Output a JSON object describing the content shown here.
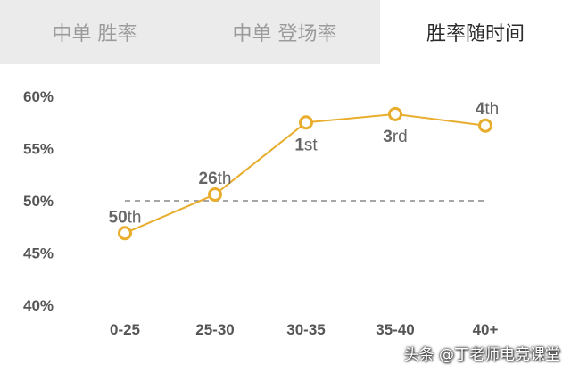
{
  "tabs": [
    {
      "label": "中单 胜率",
      "active": false
    },
    {
      "label": "中单 登场率",
      "active": false
    },
    {
      "label": "胜率随时间",
      "active": true
    }
  ],
  "chart_data": {
    "type": "line",
    "categories": [
      "0-25",
      "25-30",
      "30-35",
      "35-40",
      "40+"
    ],
    "values": [
      46.9,
      50.6,
      57.5,
      58.3,
      57.2
    ],
    "rank_labels": [
      {
        "num": "50",
        "suffix": "th"
      },
      {
        "num": "26",
        "suffix": "th"
      },
      {
        "num": "1",
        "suffix": "st"
      },
      {
        "num": "3",
        "suffix": "rd"
      },
      {
        "num": "4",
        "suffix": "th"
      }
    ],
    "yticks": [
      "40%",
      "45%",
      "50%",
      "55%",
      "60%"
    ],
    "ytick_values": [
      40,
      45,
      50,
      55,
      60
    ],
    "ylim": [
      40,
      60
    ],
    "reference_line": 50,
    "line_color": "#e8ad2d",
    "reference_line_color": "#888888"
  },
  "watermark": "头条 @丁老师电竞课堂"
}
